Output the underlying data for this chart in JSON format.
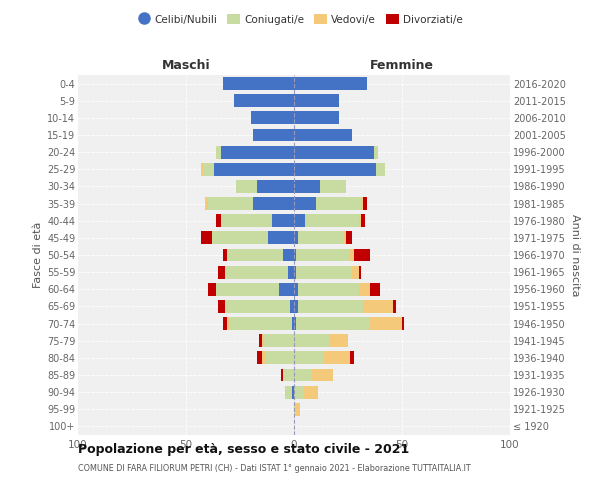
{
  "age_groups": [
    "100+",
    "95-99",
    "90-94",
    "85-89",
    "80-84",
    "75-79",
    "70-74",
    "65-69",
    "60-64",
    "55-59",
    "50-54",
    "45-49",
    "40-44",
    "35-39",
    "30-34",
    "25-29",
    "20-24",
    "15-19",
    "10-14",
    "5-9",
    "0-4"
  ],
  "birth_years": [
    "≤ 1920",
    "1921-1925",
    "1926-1930",
    "1931-1935",
    "1936-1940",
    "1941-1945",
    "1946-1950",
    "1951-1955",
    "1956-1960",
    "1961-1965",
    "1966-1970",
    "1971-1975",
    "1976-1980",
    "1981-1985",
    "1986-1990",
    "1991-1995",
    "1996-2000",
    "2001-2005",
    "2006-2010",
    "2011-2015",
    "2016-2020"
  ],
  "male": {
    "celibi": [
      0,
      0,
      1,
      0,
      0,
      0,
      1,
      2,
      7,
      3,
      5,
      12,
      10,
      19,
      17,
      37,
      34,
      19,
      20,
      28,
      33
    ],
    "coniugati": [
      0,
      0,
      3,
      5,
      13,
      14,
      29,
      30,
      29,
      29,
      26,
      26,
      24,
      21,
      10,
      5,
      2,
      0,
      0,
      0,
      0
    ],
    "vedovi": [
      0,
      0,
      0,
      0,
      2,
      1,
      1,
      0,
      0,
      0,
      0,
      0,
      0,
      1,
      0,
      1,
      0,
      0,
      0,
      0,
      0
    ],
    "divorziati": [
      0,
      0,
      0,
      1,
      2,
      1,
      2,
      3,
      4,
      3,
      2,
      5,
      2,
      0,
      0,
      0,
      0,
      0,
      0,
      0,
      0
    ]
  },
  "female": {
    "nubili": [
      0,
      0,
      0,
      0,
      0,
      0,
      1,
      2,
      2,
      1,
      1,
      2,
      5,
      10,
      12,
      38,
      37,
      27,
      21,
      21,
      34
    ],
    "coniugate": [
      0,
      1,
      4,
      8,
      14,
      16,
      34,
      30,
      28,
      26,
      25,
      21,
      25,
      21,
      12,
      4,
      2,
      0,
      0,
      0,
      0
    ],
    "vedove": [
      0,
      2,
      7,
      10,
      12,
      9,
      15,
      14,
      5,
      3,
      2,
      1,
      1,
      1,
      0,
      0,
      0,
      0,
      0,
      0,
      0
    ],
    "divorziate": [
      0,
      0,
      0,
      0,
      2,
      0,
      1,
      1,
      5,
      1,
      7,
      3,
      2,
      2,
      0,
      0,
      0,
      0,
      0,
      0,
      0
    ]
  },
  "colors": {
    "celibi": "#4472c4",
    "coniugati": "#c8dba0",
    "vedovi": "#f5c97a",
    "divorziati": "#c00000"
  },
  "xlim": 100,
  "title": "Popolazione per età, sesso e stato civile - 2021",
  "subtitle": "COMUNE DI FARA FILIORUM PETRI (CH) - Dati ISTAT 1° gennaio 2021 - Elaborazione TUTTAITALIA.IT",
  "ylabel_left": "Fasce di età",
  "ylabel_right": "Anni di nascita",
  "header_maschi": "Maschi",
  "header_femmine": "Femmine",
  "legend_labels": [
    "Celibi/Nubili",
    "Coniugati/e",
    "Vedovi/e",
    "Divorziati/e"
  ],
  "bg_color": "#f0f0f0",
  "fig_bg": "#ffffff"
}
